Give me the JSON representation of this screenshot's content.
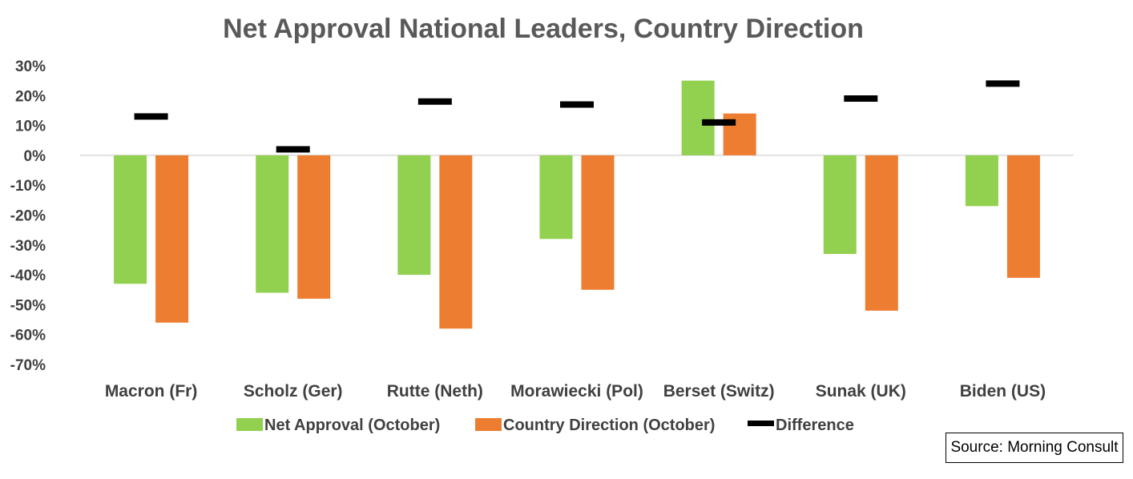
{
  "chart_data": {
    "type": "bar",
    "title": "Net Approval National Leaders, Country Direction",
    "categories": [
      "Macron (Fr)",
      "Scholz (Ger)",
      "Rutte (Neth)",
      "Morawiecki (Pol)",
      "Berset (Switz)",
      "Sunak (UK)",
      "Biden (US)"
    ],
    "series": [
      {
        "name": "Net Approval (October)",
        "type": "bar",
        "color": "#92D050",
        "values": [
          -43,
          -46,
          -40,
          -28,
          25,
          -33,
          -17
        ]
      },
      {
        "name": "Country Direction (October)",
        "type": "bar",
        "color": "#ED7D31",
        "values": [
          -56,
          -48,
          -58,
          -45,
          14,
          -52,
          -41
        ]
      },
      {
        "name": "Difference",
        "type": "marker",
        "color": "#000000",
        "values": [
          13,
          2,
          18,
          17,
          11,
          19,
          24
        ]
      }
    ],
    "ylim": [
      -70,
      30
    ],
    "yticks": [
      "30%",
      "20%",
      "10%",
      "0%",
      "-10%",
      "-20%",
      "-30%",
      "-40%",
      "-50%",
      "-60%",
      "-70%"
    ],
    "xlabel": "",
    "ylabel": "",
    "legend": "bottom",
    "grid": false,
    "source": "Source: Morning Consult"
  }
}
